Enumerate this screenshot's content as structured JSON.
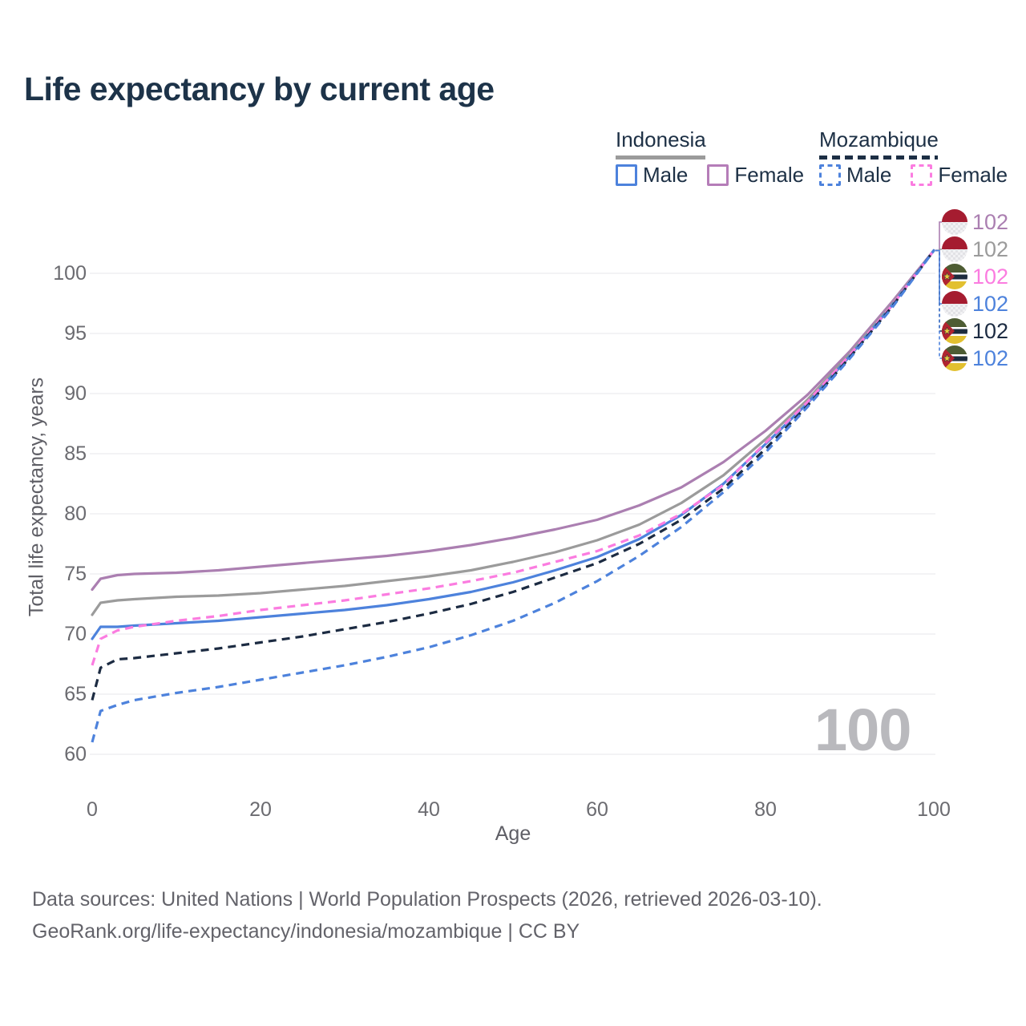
{
  "title": "Life expectancy by current age",
  "legend": {
    "groups": [
      {
        "id": "indonesia",
        "label": "Indonesia",
        "line_style": "solid",
        "line_color": "#9b9b9b",
        "items": [
          {
            "label": "Male",
            "color": "#4d82dc",
            "dashed": false
          },
          {
            "label": "Female",
            "color": "#b57db8",
            "dashed": false
          }
        ]
      },
      {
        "id": "mozambique",
        "label": "Mozambique",
        "line_style": "dashed",
        "line_color": "#1d2f45",
        "items": [
          {
            "label": "Male",
            "color": "#4d82dc",
            "dashed": true
          },
          {
            "label": "Female",
            "color": "#fb7ce0",
            "dashed": true
          }
        ]
      }
    ]
  },
  "watermark": {
    "text": "100"
  },
  "footer": {
    "line1": "Data sources: United Nations | World Population Prospects (2026, retrieved 2026-03-10).",
    "line2": "GeoRank.org/life-expectancy/indonesia/mozambique | CC BY"
  },
  "flag_colors": {
    "indonesia": {
      "red": "#a51c30",
      "white_a": "#f2f2f4",
      "white_b": "#e2e2e6"
    },
    "mozambique": {
      "green": "#4d5c33",
      "navy": "#1d2c3e",
      "yellow": "#e2c02f",
      "red": "#b02430",
      "white": "#ffffff",
      "star": "#e8c93e"
    }
  },
  "chart_data": {
    "type": "line",
    "title": "Life expectancy by current age",
    "xlabel": "Age",
    "ylabel": "Total life expectancy, years",
    "xlim": [
      0,
      100
    ],
    "ylim": [
      60,
      102
    ],
    "x_ticks": [
      0,
      20,
      40,
      60,
      80,
      100
    ],
    "y_ticks": [
      60,
      65,
      70,
      75,
      80,
      85,
      90,
      95,
      100
    ],
    "grid": "horizontal",
    "legend_position": "top-right",
    "x": [
      0,
      1,
      3,
      5,
      10,
      15,
      20,
      25,
      30,
      35,
      40,
      45,
      50,
      55,
      60,
      65,
      70,
      75,
      80,
      85,
      90,
      95,
      100
    ],
    "series": [
      {
        "name": "Indonesia Female",
        "country": "indonesia",
        "sex": "female",
        "color": "#ab7fb1",
        "dashed": false,
        "end_label": "102",
        "label_row": 0,
        "values": [
          73.7,
          74.6,
          74.9,
          75.0,
          75.1,
          75.3,
          75.6,
          75.9,
          76.2,
          76.5,
          76.9,
          77.4,
          78.0,
          78.7,
          79.5,
          80.7,
          82.2,
          84.3,
          86.9,
          89.9,
          93.5,
          97.6,
          101.9
        ]
      },
      {
        "name": "Indonesia Both sexes",
        "country": "indonesia",
        "sex": "total",
        "color": "#9b9b9b",
        "dashed": false,
        "end_label": "102",
        "label_row": 1,
        "values": [
          71.6,
          72.6,
          72.8,
          72.9,
          73.1,
          73.2,
          73.4,
          73.7,
          74.0,
          74.4,
          74.8,
          75.3,
          76.0,
          76.8,
          77.8,
          79.1,
          80.9,
          83.2,
          86.2,
          89.5,
          93.3,
          97.4,
          101.9
        ]
      },
      {
        "name": "Indonesia Male",
        "country": "indonesia",
        "sex": "male",
        "color": "#4d82dc",
        "dashed": false,
        "end_label": "102",
        "label_row": 3,
        "values": [
          69.6,
          70.6,
          70.6,
          70.7,
          70.9,
          71.1,
          71.4,
          71.7,
          72.0,
          72.4,
          72.9,
          73.5,
          74.3,
          75.3,
          76.4,
          77.9,
          79.9,
          82.5,
          85.8,
          89.2,
          93.1,
          97.3,
          101.9
        ]
      },
      {
        "name": "Mozambique Female",
        "country": "mozambique",
        "sex": "female",
        "color": "#fb7ce0",
        "dashed": true,
        "end_label": "102",
        "label_row": 2,
        "values": [
          67.4,
          69.6,
          70.3,
          70.6,
          71.1,
          71.5,
          72.0,
          72.4,
          72.8,
          73.3,
          73.8,
          74.4,
          75.1,
          76.0,
          76.9,
          78.2,
          80.0,
          82.4,
          85.9,
          89.3,
          93.2,
          97.3,
          101.9
        ]
      },
      {
        "name": "Mozambique Both sexes",
        "country": "mozambique",
        "sex": "total",
        "color": "#1c2b42",
        "dashed": true,
        "end_label": "102",
        "label_row": 4,
        "values": [
          64.5,
          67.2,
          67.9,
          68.0,
          68.4,
          68.8,
          69.3,
          69.8,
          70.4,
          71.0,
          71.7,
          72.5,
          73.5,
          74.7,
          75.9,
          77.5,
          79.5,
          82.1,
          85.4,
          89.0,
          93.0,
          97.2,
          101.9
        ]
      },
      {
        "name": "Mozambique Male",
        "country": "mozambique",
        "sex": "male",
        "color": "#4d82dc",
        "dashed": true,
        "end_label": "102",
        "label_row": 5,
        "values": [
          61.0,
          63.6,
          64.1,
          64.5,
          65.1,
          65.6,
          66.2,
          66.8,
          67.4,
          68.1,
          68.9,
          69.9,
          71.1,
          72.6,
          74.4,
          76.5,
          78.9,
          81.8,
          85.1,
          88.9,
          92.9,
          97.1,
          101.9
        ]
      }
    ]
  }
}
